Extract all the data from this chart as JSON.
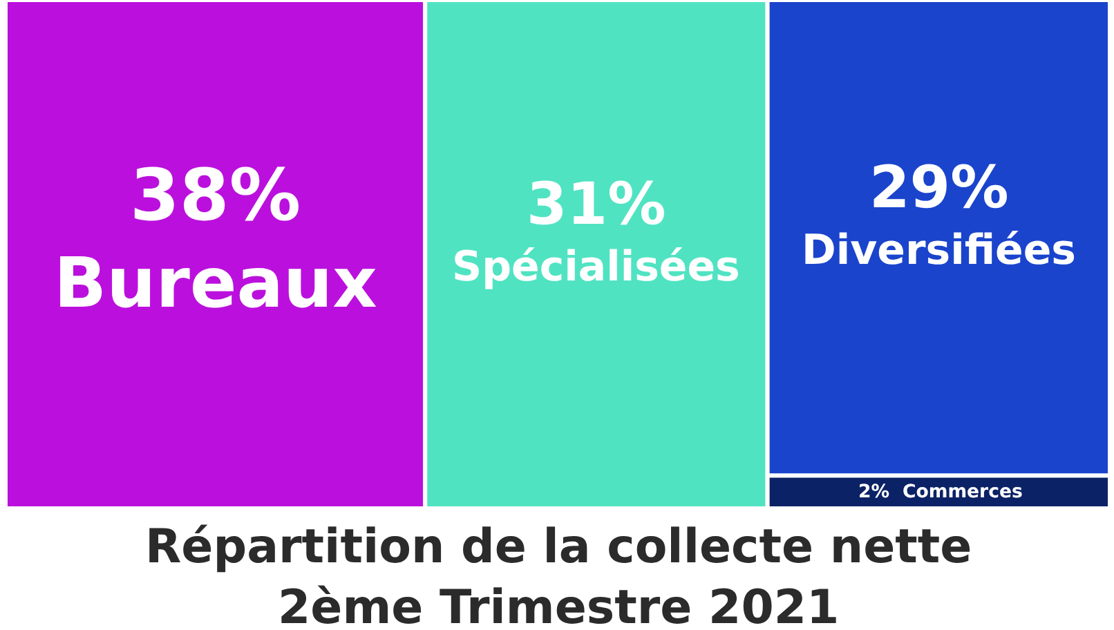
{
  "chart_data": {
    "type": "other",
    "title": "Répartition de la collecte nette\n2ème Trimestre 2021",
    "categories": [
      "Bureaux",
      "Spécialisées",
      "Diversifiées",
      "Commerces"
    ],
    "values": [
      38,
      31,
      29,
      2
    ],
    "value_labels": [
      "38%",
      "31%",
      "29%",
      "2%"
    ],
    "colors": [
      "#bb10dd",
      "#50e3c2",
      "#1a44cc",
      "#0c2266"
    ]
  }
}
